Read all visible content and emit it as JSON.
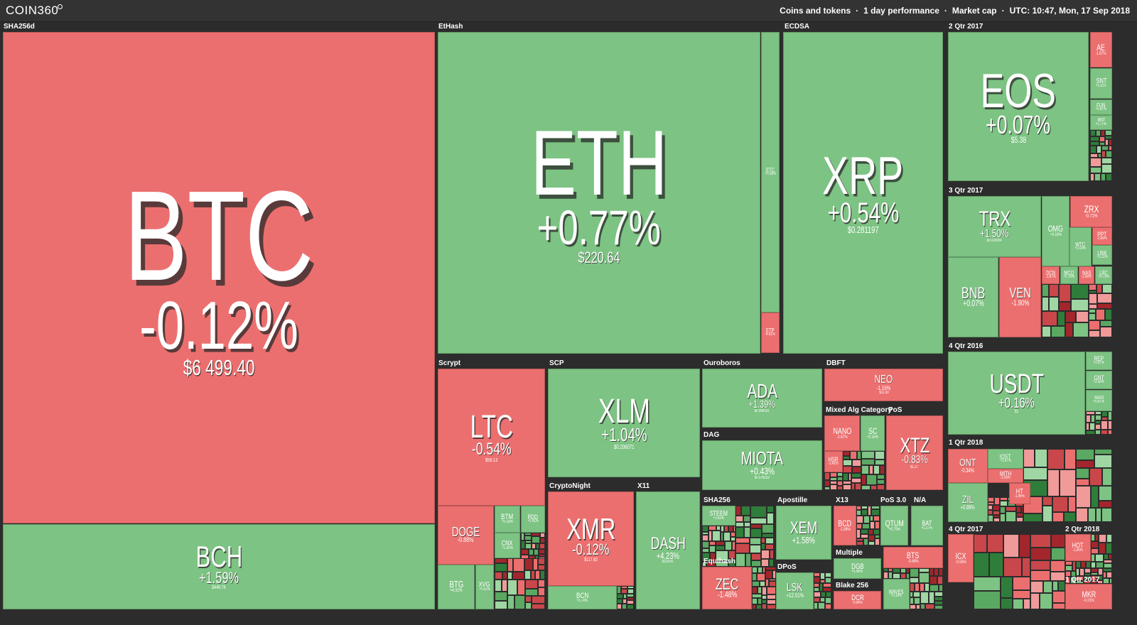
{
  "header": {
    "logo": "COIN360",
    "info": [
      "Coins and tokens",
      "1 day performance",
      "Market cap",
      "UTC: 10:47, Mon, 17 Sep 2018"
    ]
  },
  "groups": [
    "SHA256d",
    "EtHash",
    "ECDSA",
    "2 Qtr 2017",
    "3 Qtr 2017",
    "4 Qtr 2016",
    "1 Qtr 2018",
    "4 Qtr 2017",
    "2 Qtr 2018",
    "1 Qtr 2017",
    "Scrypt",
    "SCP",
    "CryptoNight",
    "X11",
    "Ouroboros",
    "DAG",
    "DBFT",
    "Mixed Alg Category",
    "PoS",
    "SHA256",
    "Equihash",
    "Apostille",
    "DPoS",
    "X13",
    "PoS 3.0",
    "N/A",
    "Multiple",
    "Blake 256"
  ],
  "tiles": [
    {
      "symbol": "BTC",
      "change": "-0.12%",
      "price": "$6 499.40"
    },
    {
      "symbol": "BCH",
      "change": "+1.59%",
      "price": "$448.78"
    },
    {
      "symbol": "ETH",
      "change": "+0.77%",
      "price": "$220.64"
    },
    {
      "symbol": "ETC",
      "change": "+0.26%"
    },
    {
      "symbol": "ETP",
      "change": "-4.81%"
    },
    {
      "symbol": "XRP",
      "change": "+0.54%",
      "price": "$0.281197"
    },
    {
      "symbol": "EOS",
      "change": "+0.07%",
      "price": "$5.38"
    },
    {
      "symbol": "AE",
      "change": "-1.87%"
    },
    {
      "symbol": "SNT",
      "change": "+3.11%"
    },
    {
      "symbol": "FUN",
      "change": "+0.97%"
    },
    {
      "symbol": "BNT",
      "change": "+1.77%"
    },
    {
      "symbol": "TRX",
      "change": "+1.50%",
      "price": "$0.020004"
    },
    {
      "symbol": "OMG",
      "change": "+0.16%"
    },
    {
      "symbol": "ZRX",
      "change": "-0.71%"
    },
    {
      "symbol": "PPT",
      "change": "-2.89%"
    },
    {
      "symbol": "LINK",
      "change": "+2.22%"
    },
    {
      "symbol": "WTC",
      "change": "+2.03%"
    },
    {
      "symbol": "BNB",
      "change": "+0.07%"
    },
    {
      "symbol": "VEN",
      "change": "-1.90%"
    },
    {
      "symbol": "DCN",
      "change": "-1.67%"
    },
    {
      "symbol": "MCO",
      "change": "+0.79%"
    },
    {
      "symbol": "NAS",
      "change": "-1.06%"
    },
    {
      "symbol": "LRC",
      "change": "+0.73%"
    },
    {
      "symbol": "USDT",
      "change": "+0.16%",
      "price": "$1"
    },
    {
      "symbol": "REP",
      "change": "+2.67%"
    },
    {
      "symbol": "GNT",
      "change": "+2.50%"
    },
    {
      "symbol": "MAID",
      "change": "+0.67%"
    },
    {
      "symbol": "ONT",
      "change": "-0.34%"
    },
    {
      "symbol": "ZIL",
      "change": "+0.89%"
    },
    {
      "symbol": "IOST",
      "change": "+1.67%"
    },
    {
      "symbol": "MITH",
      "change": "-1.03%"
    },
    {
      "symbol": "HT",
      "change": "-1.96%"
    },
    {
      "symbol": "ICX",
      "change": "-0.55%"
    },
    {
      "symbol": "HOT",
      "change": "-1.90%"
    },
    {
      "symbol": "MKR",
      "change": "-0.21%"
    },
    {
      "symbol": "LTC",
      "change": "-0.54%",
      "price": "$56.13"
    },
    {
      "symbol": "DOGE",
      "change": "-0.88%"
    },
    {
      "symbol": "BTM",
      "change": "+0.16%"
    },
    {
      "symbol": "RDD",
      "change": "+1.41%"
    },
    {
      "symbol": "CNX",
      "change": "+1.80%"
    },
    {
      "symbol": "BTG",
      "change": "+4.31%"
    },
    {
      "symbol": "XVG",
      "change": "+0.52%"
    },
    {
      "symbol": "XLM",
      "change": "+1.04%",
      "price": "$0.206071"
    },
    {
      "symbol": "XMR",
      "change": "-0.12%",
      "price": "$117.82"
    },
    {
      "symbol": "BCN",
      "change": "+1.74%"
    },
    {
      "symbol": "DASH",
      "change": "+4.23%",
      "price": "$116.61"
    },
    {
      "symbol": "ADA",
      "change": "+1.39%",
      "price": "$0.069291"
    },
    {
      "symbol": "MIOTA",
      "change": "+0.43%",
      "price": "$0.576153"
    },
    {
      "symbol": "NEO",
      "change": "-1.16%",
      "price": "$11.93"
    },
    {
      "symbol": "NANO",
      "change": "-2.67%"
    },
    {
      "symbol": "SC",
      "change": "+2.16%"
    },
    {
      "symbol": "HSR",
      "change": "-1.41%"
    },
    {
      "symbol": "XTZ",
      "change": "-0.83%",
      "price": "$1.27"
    },
    {
      "symbol": "STEEM",
      "change": "+3.63%"
    },
    {
      "symbol": "ZEC",
      "change": "-1.48%"
    },
    {
      "symbol": "XEM",
      "change": "+1.58%"
    },
    {
      "symbol": "LSK",
      "change": "+12.01%"
    },
    {
      "symbol": "BCD",
      "change": "-1.99%"
    },
    {
      "symbol": "QTUM",
      "change": "+0.79%"
    },
    {
      "symbol": "BAT",
      "change": "+2.27%"
    },
    {
      "symbol": "DGB",
      "change": "+1.98%"
    },
    {
      "symbol": "DCR",
      "change": "-0.94%"
    },
    {
      "symbol": "BTS",
      "change": "-0.49%"
    },
    {
      "symbol": "WAVES",
      "change": "+0.19%"
    }
  ]
}
